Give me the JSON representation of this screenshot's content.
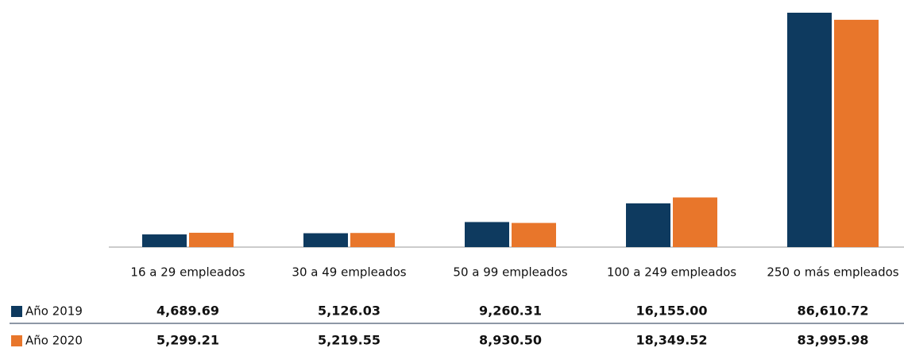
{
  "chart_data": {
    "type": "bar",
    "categories": [
      "16 a 29 empleados",
      "30 a 49 empleados",
      "50 a 99 empleados",
      "100 a 249 empleados",
      "250 o más empleados"
    ],
    "series": [
      {
        "name": "Año 2019",
        "color": "#0e3a5f",
        "values": [
          4689.69,
          5126.03,
          9260.31,
          16155.0,
          86610.72
        ],
        "value_labels": [
          "4,689.69",
          "5,126.03",
          "9,260.31",
          "16,155.00",
          "86,610.72"
        ]
      },
      {
        "name": "Año 2020",
        "color": "#e8762b",
        "values": [
          5299.21,
          5219.55,
          8930.5,
          18349.52,
          83995.98
        ],
        "value_labels": [
          "5,299.21",
          "5,219.55",
          "8,930.50",
          "18,349.52",
          "83,995.98"
        ]
      }
    ]
  }
}
